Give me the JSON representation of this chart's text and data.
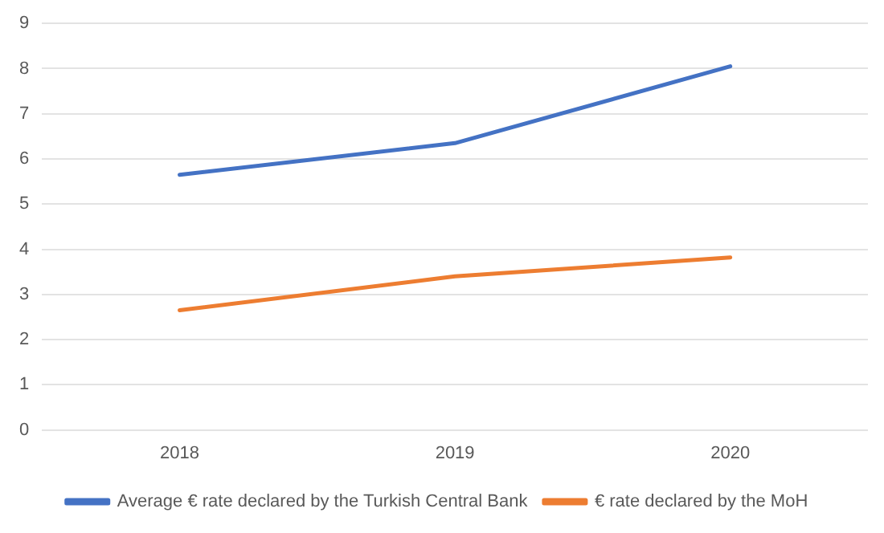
{
  "chart_data": {
    "type": "line",
    "categories": [
      "2018",
      "2019",
      "2020"
    ],
    "series": [
      {
        "name": "Average € rate declared by the Turkish Central Bank",
        "color": "#4472c4",
        "values": [
          5.65,
          6.35,
          8.05
        ]
      },
      {
        "name": "€ rate declared by the MoH",
        "color": "#ed7d31",
        "values": [
          2.65,
          3.4,
          3.82
        ]
      }
    ],
    "ylim": [
      0,
      9
    ],
    "yticks": [
      0,
      1,
      2,
      3,
      4,
      5,
      6,
      7,
      8,
      9
    ],
    "grid": "y",
    "legend": "bottom",
    "marker": "none",
    "line_style": "solid"
  }
}
